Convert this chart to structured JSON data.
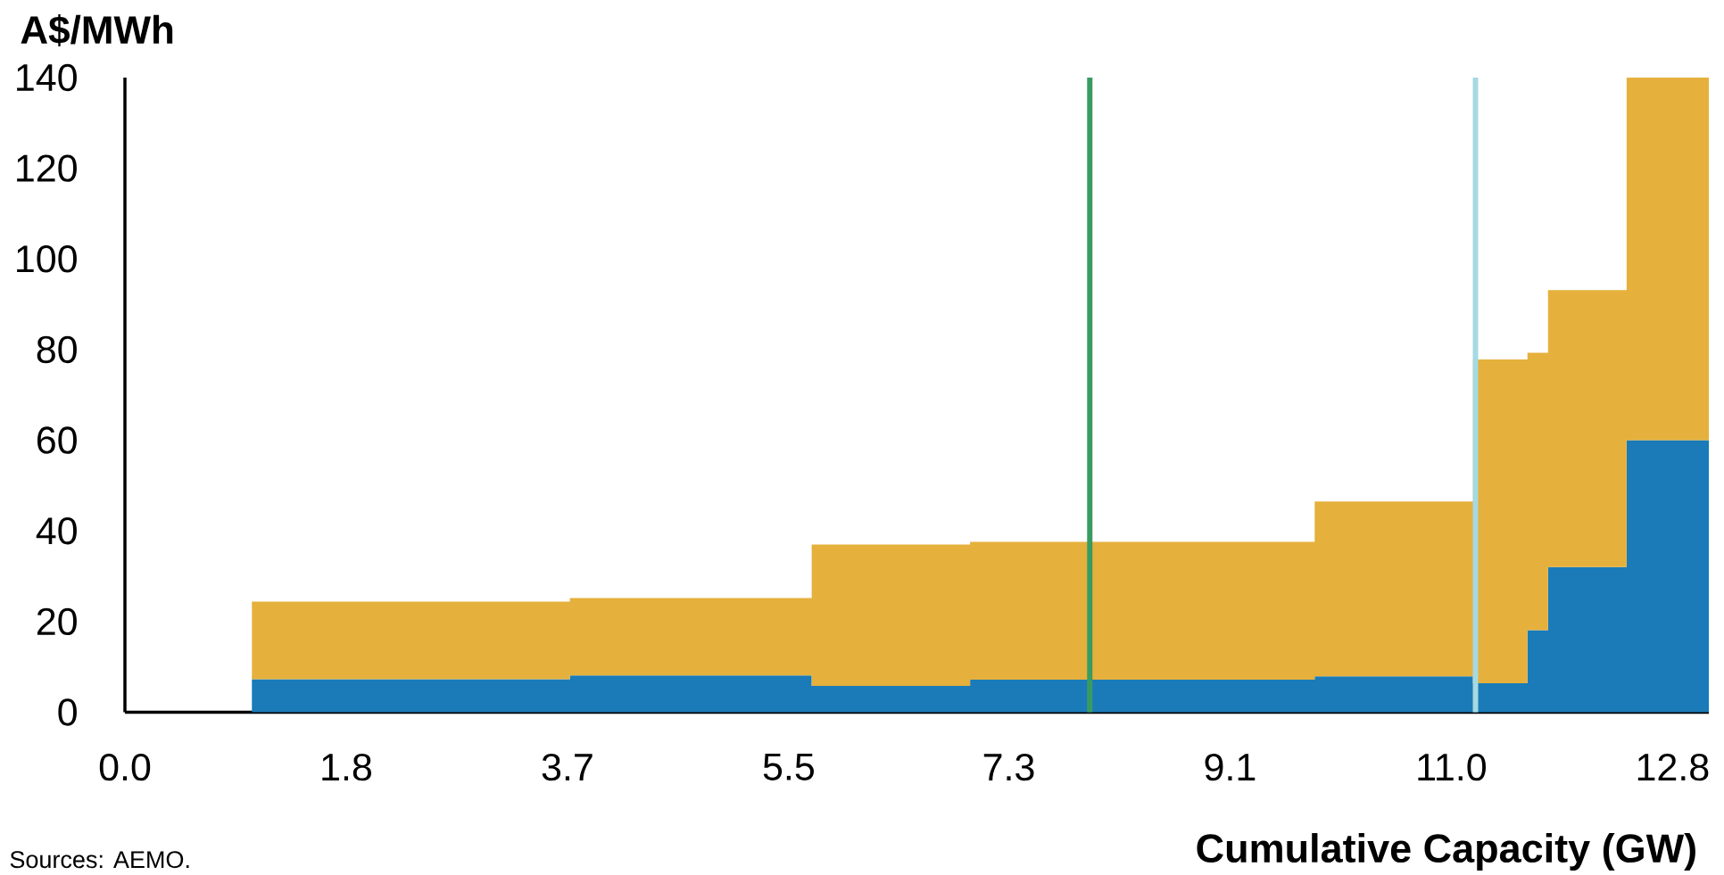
{
  "chart_data": {
    "type": "area",
    "xlabel": "Cumulative Capacity (GW)",
    "ylabel": "A$/MWh",
    "annotations": [
      "Sources: AEMO."
    ],
    "x": [
      1.05,
      3.68,
      3.68,
      5.68,
      5.68,
      6.99,
      6.99,
      9.84,
      9.84,
      11.15,
      11.15,
      11.6,
      11.6,
      11.77,
      11.77,
      12.42,
      12.42,
      13.1
    ],
    "stacked": true,
    "series": [
      {
        "color": "#1a7bb8",
        "values": [
          7.3,
          7.3,
          8.1,
          8.1,
          5.8,
          5.8,
          7.2,
          7.2,
          7.9,
          7.9,
          6.4,
          6.4,
          18.1,
          18.1,
          32,
          32,
          60,
          60
        ]
      },
      {
        "color": "#e5b03c",
        "values": [
          17.1,
          17.1,
          17.1,
          17.1,
          31.2,
          31.2,
          30.4,
          30.4,
          38.6,
          38.6,
          71.4,
          71.4,
          61.2,
          61.2,
          61.1,
          61.1,
          80,
          80
        ]
      }
    ],
    "xlim": [
      0,
      13.1
    ],
    "ylim": [
      0,
      140
    ],
    "xticks": [
      {
        "value": 0,
        "label": "0.0"
      },
      {
        "value": 1.83,
        "label": "1.8"
      },
      {
        "value": 3.66,
        "label": "3.7"
      },
      {
        "value": 5.49,
        "label": "5.5"
      },
      {
        "value": 7.31,
        "label": "7.3"
      },
      {
        "value": 9.14,
        "label": "9.1"
      },
      {
        "value": 10.97,
        "label": "11.0"
      },
      12.8
    ],
    "yticks": [
      0,
      20,
      40,
      60,
      80,
      100,
      120,
      140
    ],
    "ref_lines": [
      {
        "axis": "x",
        "value": 7.98,
        "color": "#3a9b62"
      },
      {
        "axis": "x",
        "value": 11.17,
        "color": "#a6d9e2"
      }
    ]
  }
}
